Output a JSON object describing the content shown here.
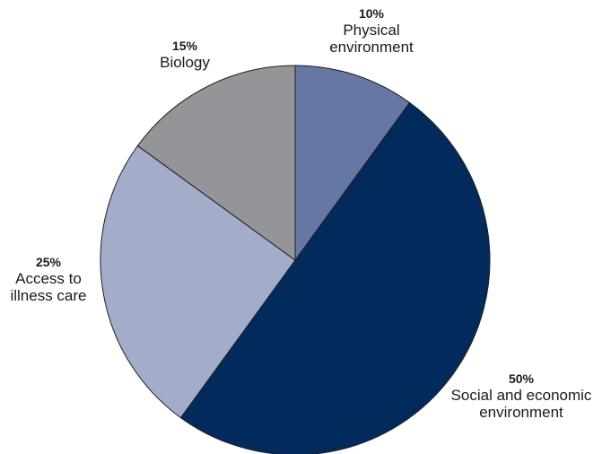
{
  "chart_data": {
    "type": "pie",
    "title": "",
    "start_angle_deg": 0,
    "direction": "clockwise",
    "slices": [
      {
        "label": [
          "Physical",
          "environment"
        ],
        "percent_label": "10%",
        "value": 10,
        "color": "#6577a2"
      },
      {
        "label": [
          "Social and economic",
          "environment"
        ],
        "percent_label": "50%",
        "value": 50,
        "color": "#022a5c"
      },
      {
        "label": [
          "Access to",
          "illness care"
        ],
        "percent_label": "25%",
        "value": 25,
        "color": "#a3adca"
      },
      {
        "label": [
          "Biology"
        ],
        "percent_label": "15%",
        "value": 15,
        "color": "#939598"
      }
    ]
  }
}
